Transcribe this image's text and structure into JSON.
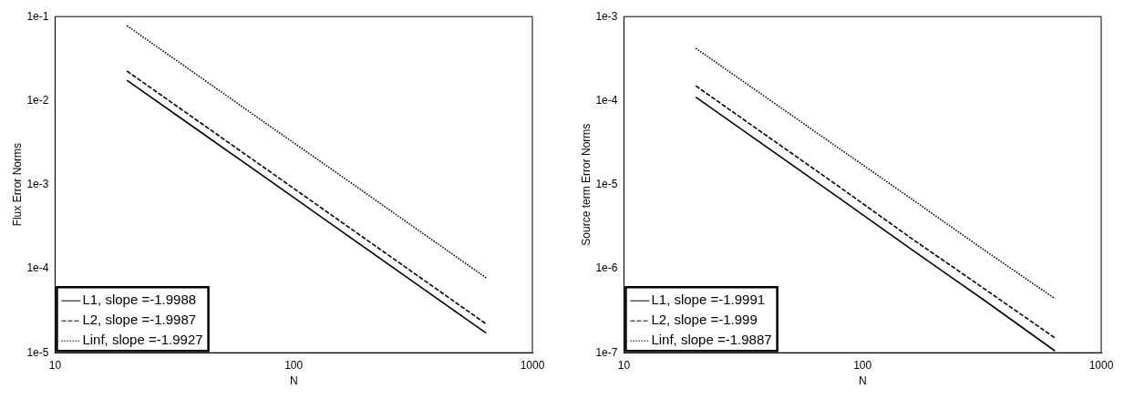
{
  "chart_data": [
    {
      "type": "line",
      "xlabel": "N",
      "ylabel": "Flux Error Norms",
      "x": [
        20,
        40,
        80,
        160,
        320,
        640
      ],
      "log": "xy",
      "xlim": [
        10,
        1000
      ],
      "xticks": [
        10,
        100,
        1000
      ],
      "ylim": [
        1e-05,
        0.1
      ],
      "yticks": [
        {
          "value": 1e-05,
          "label": "1e-5"
        },
        {
          "value": 0.0001,
          "label": "1e-4"
        },
        {
          "value": 0.001,
          "label": "1e-3"
        },
        {
          "value": 0.01,
          "label": "1e-2"
        },
        {
          "value": 0.1,
          "label": "1e-1"
        }
      ],
      "legend": "bottom left",
      "series": [
        {
          "name": "L1, slope =-1.9988",
          "color": "#000000",
          "line_style": "solid",
          "values": [
            0.0175,
            0.00438,
            0.0011,
            0.000274,
            6.85e-05,
            1.71e-05
          ]
        },
        {
          "name": "L2, slope =-1.9987",
          "color": "#000000",
          "line_style": "dashed",
          "values": [
            0.0225,
            0.00563,
            0.00141,
            0.000352,
            8.8e-05,
            2.2e-05
          ]
        },
        {
          "name": "Linf, slope =-1.9927",
          "color": "#000000",
          "line_style": "dotted",
          "values": [
            0.078,
            0.0196,
            0.0049,
            0.00124,
            0.00031,
            7.8e-05
          ]
        }
      ]
    },
    {
      "type": "line",
      "xlabel": "N",
      "ylabel": "Source term Error Norms",
      "x": [
        20,
        40,
        80,
        160,
        320,
        640
      ],
      "log": "xy",
      "xlim": [
        10,
        1000
      ],
      "xticks": [
        10,
        100,
        1000
      ],
      "ylim": [
        1e-07,
        0.001
      ],
      "yticks": [
        {
          "value": 1e-07,
          "label": "1e-7"
        },
        {
          "value": 1e-06,
          "label": "1e-6"
        },
        {
          "value": 1e-05,
          "label": "1e-5"
        },
        {
          "value": 0.0001,
          "label": "1e-4"
        },
        {
          "value": 0.001,
          "label": "1e-3"
        }
      ],
      "legend": "bottom left",
      "series": [
        {
          "name": "L1, slope =-1.9991",
          "color": "#000000",
          "line_style": "solid",
          "values": [
            0.00011,
            2.75e-05,
            6.9e-06,
            1.7e-06,
            4.3e-07,
            1.05e-07
          ]
        },
        {
          "name": "L2, slope =-1.999",
          "color": "#000000",
          "line_style": "dashed",
          "values": [
            0.00015,
            3.75e-05,
            9.4e-06,
            2.3e-06,
            5.9e-07,
            1.5e-07
          ]
        },
        {
          "name": "Linf, slope =-1.9887",
          "color": "#000000",
          "line_style": "dotted",
          "values": [
            0.00042,
            0.000106,
            2.68e-05,
            6.8e-06,
            1.7e-06,
            4.4e-07
          ]
        }
      ]
    }
  ]
}
